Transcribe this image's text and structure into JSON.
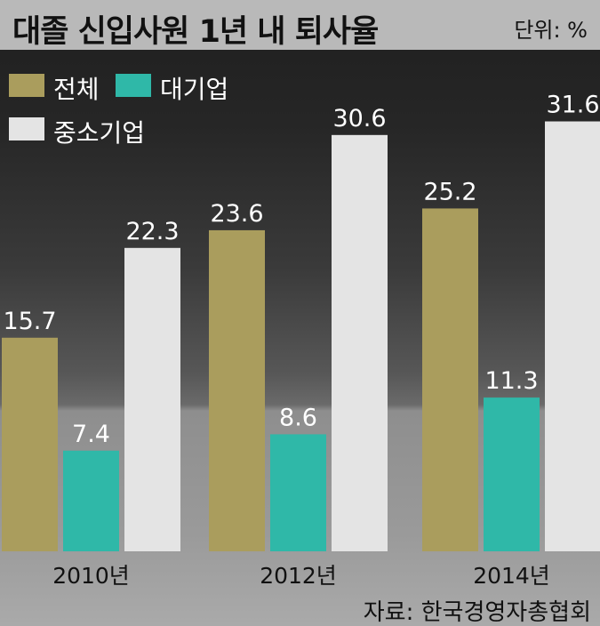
{
  "header": {
    "title": "대졸 신입사원 1년 내 퇴사율",
    "unit": "단위: %"
  },
  "source": "자료: 한국경영자총협회",
  "colors": {
    "total": "#aa9d5d",
    "large": "#2fb8a8",
    "sme": "#e4e4e4"
  },
  "legend": [
    {
      "label": "전체",
      "color": "#aa9d5d"
    },
    {
      "label": "대기업",
      "color": "#2fb8a8"
    },
    {
      "label": "중소기업",
      "color": "#e4e4e4"
    }
  ],
  "chart_data": {
    "type": "bar",
    "title": "대졸 신입사원 1년 내 퇴사율",
    "unit": "단위: %",
    "categories": [
      "2010년",
      "2012년",
      "2014년"
    ],
    "series": [
      {
        "name": "전체",
        "values": [
          15.7,
          23.6,
          25.2
        ]
      },
      {
        "name": "대기업",
        "values": [
          7.4,
          8.6,
          11.3
        ]
      },
      {
        "name": "중소기업",
        "values": [
          22.3,
          30.6,
          31.6
        ]
      }
    ],
    "ylim": [
      0,
      35
    ],
    "grid": false,
    "legend_position": "top-left"
  }
}
